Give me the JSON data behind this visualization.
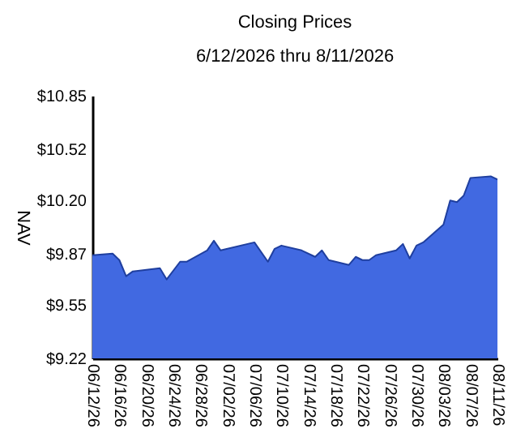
{
  "chart_data": {
    "type": "area",
    "title": "Closing Prices",
    "subtitle": "6/12/2026 thru 8/11/2026",
    "ylabel": "NAV",
    "x": [
      "2026-06-12",
      "2026-06-15",
      "2026-06-16",
      "2026-06-17",
      "2026-06-18",
      "2026-06-22",
      "2026-06-23",
      "2026-06-25",
      "2026-06-26",
      "2026-06-29",
      "2026-06-30",
      "2026-07-01",
      "2026-07-06",
      "2026-07-08",
      "2026-07-09",
      "2026-07-10",
      "2026-07-13",
      "2026-07-15",
      "2026-07-16",
      "2026-07-17",
      "2026-07-20",
      "2026-07-21",
      "2026-07-22",
      "2026-07-23",
      "2026-07-24",
      "2026-07-27",
      "2026-07-28",
      "2026-07-29",
      "2026-07-30",
      "2026-07-31",
      "2026-08-03",
      "2026-08-04",
      "2026-08-05",
      "2026-08-06",
      "2026-08-07",
      "2026-08-10",
      "2026-08-11"
    ],
    "series": [
      {
        "color": "#4169e1",
        "values": [
          9.86,
          9.87,
          9.83,
          9.73,
          9.76,
          9.78,
          9.71,
          9.82,
          9.82,
          9.89,
          9.95,
          9.89,
          9.94,
          9.82,
          9.9,
          9.92,
          9.89,
          9.85,
          9.89,
          9.83,
          9.8,
          9.85,
          9.83,
          9.83,
          9.86,
          9.89,
          9.93,
          9.84,
          9.92,
          9.94,
          10.05,
          10.2,
          10.19,
          10.23,
          10.34,
          10.35,
          10.33
        ]
      }
    ],
    "xlim": [
      "2026-06-12",
      "2026-08-11"
    ],
    "xticks": [
      {
        "value": "2026-06-12",
        "label": "06/12/26"
      },
      {
        "value": "2026-06-16",
        "label": "06/16/26"
      },
      {
        "value": "2026-06-20",
        "label": "06/20/26"
      },
      {
        "value": "2026-06-24",
        "label": "06/24/26"
      },
      {
        "value": "2026-06-28",
        "label": "06/28/26"
      },
      {
        "value": "2026-07-02",
        "label": "07/02/26"
      },
      {
        "value": "2026-07-06",
        "label": "07/06/26"
      },
      {
        "value": "2026-07-10",
        "label": "07/10/26"
      },
      {
        "value": "2026-07-14",
        "label": "07/14/26"
      },
      {
        "value": "2026-07-18",
        "label": "07/18/26"
      },
      {
        "value": "2026-07-22",
        "label": "07/22/26"
      },
      {
        "value": "2026-07-26",
        "label": "07/26/26"
      },
      {
        "value": "2026-07-30",
        "label": "07/30/26"
      },
      {
        "value": "2026-08-03",
        "label": "08/03/26"
      },
      {
        "value": "2026-08-07",
        "label": "08/07/26"
      },
      {
        "value": "2026-08-11",
        "label": "08/11/26"
      }
    ],
    "ylim": [
      9.22,
      10.85
    ],
    "yticks": [
      {
        "value": 9.22,
        "label": "$9.22"
      },
      {
        "value": 9.55,
        "label": "$9.55"
      },
      {
        "value": 9.87,
        "label": "$9.87"
      },
      {
        "value": 10.2,
        "label": "$10.20"
      },
      {
        "value": 10.52,
        "label": "$10.52"
      },
      {
        "value": 10.85,
        "label": "$10.85"
      }
    ],
    "grid": false
  }
}
